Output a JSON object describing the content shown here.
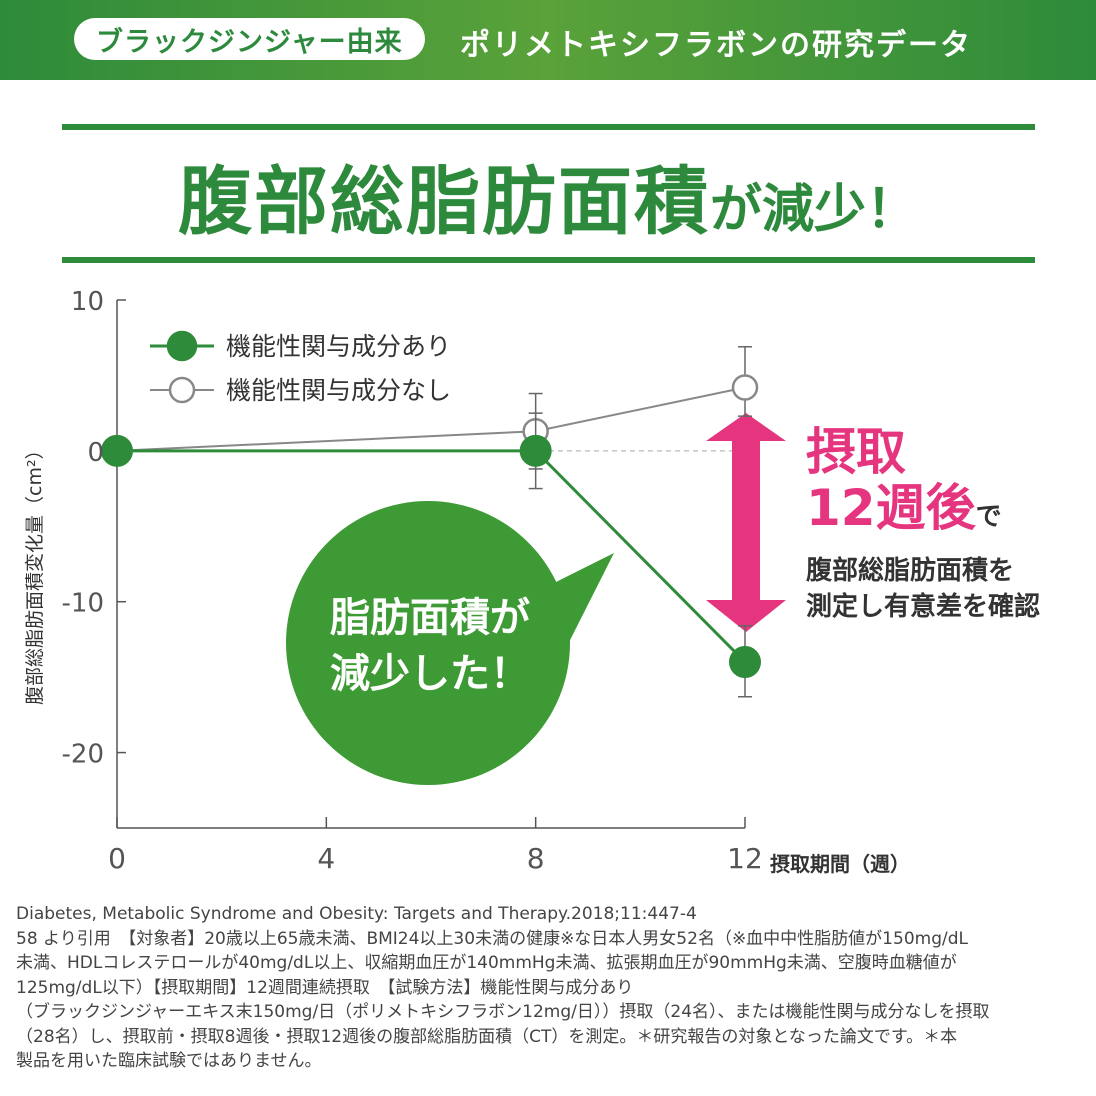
{
  "header": {
    "pill": "ブラックジンジャー由来",
    "title": "ポリメトキシフラボンの研究データ"
  },
  "headline": {
    "main": "腹部総脂肪面積",
    "suffix": "が減少！"
  },
  "chart_data": {
    "type": "line",
    "x": [
      0,
      8,
      12
    ],
    "xticks": [
      "0",
      "4",
      "8",
      "12"
    ],
    "yticks": [
      "10",
      "0",
      "-10",
      "-20"
    ],
    "xlim": [
      0,
      12
    ],
    "ylim": [
      -25,
      10
    ],
    "xlabel": "摂取期間（週）",
    "ylabel": "腹部総脂肪面積変化量（cm²）",
    "legend_position": "top-left",
    "series": [
      {
        "name": "機能性関与成分あり",
        "values": [
          0,
          0,
          -14
        ],
        "err_low": [
          0,
          -2.5,
          -16.3
        ],
        "err_high": [
          0,
          2.5,
          -11.6
        ],
        "color": "#2e8b3a",
        "marker": "filled"
      },
      {
        "name": "機能性関与成分なし",
        "values": [
          0,
          1.3,
          4.2
        ],
        "err_low": [
          0,
          -1.2,
          2.3
        ],
        "err_high": [
          0,
          3.8,
          6.9
        ],
        "color": "#888888",
        "marker": "hollow"
      }
    ]
  },
  "callout": {
    "line1": "摂取",
    "line2": "12週後",
    "line2_suffix": "で",
    "line3": "腹部総脂肪面積を",
    "line4": "測定し有意差を確認",
    "arrow_color": "#e6357f"
  },
  "bubble": {
    "line1": "脂肪面積が",
    "line2": "減少した！",
    "color": "#3d9a35"
  },
  "footnote": {
    "lines": [
      "Diabetes, Metabolic Syndrome and Obesity: Targets and Therapy.2018;11:447-4",
      "58 より引用　【対象者】20歳以上65歳未満、BMI24以上30未満の健康※な日本人男女52名（※血中中性脂肪値が150mg/dL",
      "未満、HDLコレステロールが40mg/dL以上、収縮期血圧が140mmHg未満、拡張期血圧が90mmHg未満、空腹時血糖値が",
      "125mg/dL以下）【摂取期間】12週間連続摂取　【試験方法】機能性関与成分あり",
      "（ブラックジンジャーエキス末150mg/日（ポリメトキシフラボン12mg/日））摂取（24名）、または機能性関与成分なしを摂取",
      "（28名）し、摂取前・摂取8週後・摂取12週後の腹部総脂肪面積（CT）を測定。＊研究報告の対象となった論文です。＊本",
      "製品を用いた臨床試験ではありません。"
    ]
  }
}
